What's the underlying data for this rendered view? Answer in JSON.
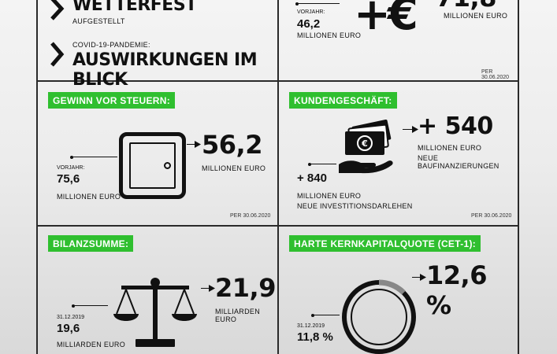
{
  "top_left": {
    "row1_title": "WETTERFEST",
    "row1_sub": "AUFGESTELLT",
    "row2_small": "COVID-19-PANDEMIE:",
    "row2_title": "AUSWIRKUNGEN IM BLICK"
  },
  "top_right": {
    "prev_label": "VORJAHR:",
    "prev_value": "46,2",
    "prev_unit": "MILLIONEN EURO",
    "symbol": "+€",
    "value_partial": "71,8",
    "unit": "MILLIONEN EURO",
    "date": "PER 30.06.2020"
  },
  "gewinn": {
    "label": "GEWINN VOR STEUERN:",
    "value": "56,2",
    "unit": "MILLIONEN EURO",
    "prev_label": "VORJAHR:",
    "prev_value": "75,6",
    "prev_unit": "MILLIONEN EURO",
    "date": "PER 30.06.2020"
  },
  "kunden": {
    "label": "KUNDENGESCHÄFT:",
    "value1": "+ 540",
    "value1_unit": "MILLIONEN EURO",
    "value1_desc": "NEUE BAUFINANZIERUNGEN",
    "value2": "+ 840",
    "value2_unit": "MILLIONEN EURO",
    "value2_desc": "NEUE INVESTITIONSDARLEHEN",
    "date": "PER 30.06.2020"
  },
  "bilanz": {
    "label": "BILANZSUMME:",
    "value": "21,9",
    "unit": "MILLIARDEN EURO",
    "prev_label": "31.12.2019",
    "prev_value": "19,6",
    "prev_unit": "MILLIARDEN EURO"
  },
  "cet1": {
    "label": "HARTE KERNKAPITALQUOTE (CET-1):",
    "value": "12,6 %",
    "prev_label": "31.12.2019",
    "prev_value": "11,8 %",
    "ratio_percent": 12.6
  },
  "colors": {
    "accent_green": "#2fbf2f",
    "ink": "#111111",
    "ring_fill": "#888888"
  }
}
